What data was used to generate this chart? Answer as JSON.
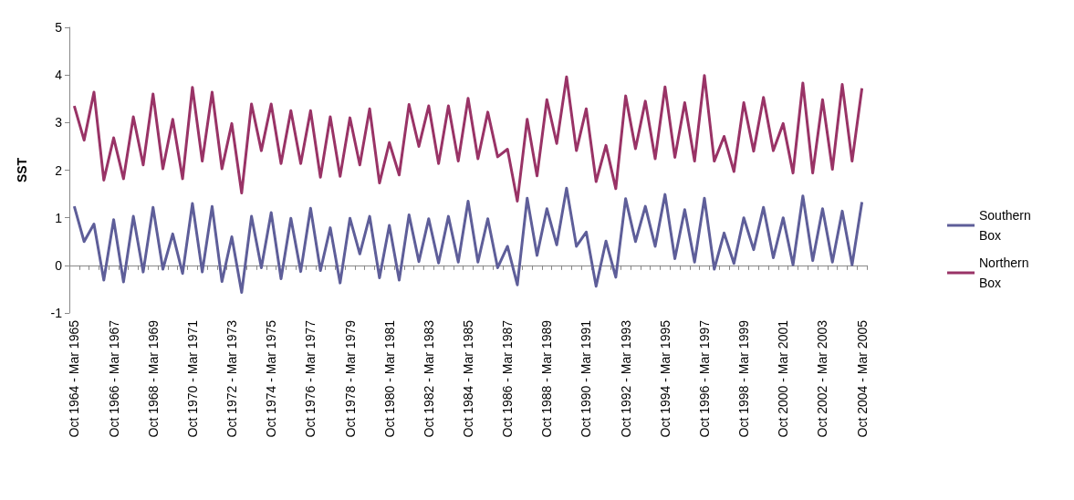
{
  "chart_data": {
    "type": "line",
    "ylabel": "SST",
    "categories": [
      "Oct 1964 - Mar 1965",
      null,
      null,
      null,
      "Oct 1966 - Mar 1967",
      null,
      null,
      null,
      "Oct 1968 - Mar 1969",
      null,
      null,
      null,
      "Oct 1970 - Mar 1971",
      null,
      null,
      null,
      "Oct 1972 - Mar 1973",
      null,
      null,
      null,
      "Oct 1974 - Mar 1975",
      null,
      null,
      null,
      "Oct 1976 - Mar 1977",
      null,
      null,
      null,
      "Oct 1978 - Mar 1979",
      null,
      null,
      null,
      "Oct 1980 - Mar 1981",
      null,
      null,
      null,
      "Oct 1982 - Mar 1983",
      null,
      null,
      null,
      "Oct 1984 - Mar 1985",
      null,
      null,
      null,
      "Oct 1986 - Mar 1987",
      null,
      null,
      null,
      "Oct 1988 - Mar 1989",
      null,
      null,
      null,
      "Oct 1990 - Mar 1991",
      null,
      null,
      null,
      "Oct 1992 - Mar 1993",
      null,
      null,
      null,
      "Oct 1994 - Mar 1995",
      null,
      null,
      null,
      "Oct 1996 - Mar 1997",
      null,
      null,
      null,
      "Oct 1998 - Mar 1999",
      null,
      null,
      null,
      "Oct 2000 - Mar 2001",
      null,
      null,
      null,
      "Oct 2002 - Mar 2003",
      null,
      null,
      null,
      "Oct 2004 - Mar 2005"
    ],
    "series": [
      {
        "name": "Southern Box",
        "color": "#5e5e99",
        "values": [
          1.24,
          0.5,
          0.87,
          -0.31,
          0.96,
          -0.35,
          1.03,
          -0.14,
          1.22,
          -0.08,
          0.66,
          -0.17,
          1.3,
          -0.14,
          1.24,
          -0.34,
          0.6,
          -0.57,
          1.03,
          -0.05,
          1.11,
          -0.28,
          0.99,
          -0.13,
          1.2,
          -0.11,
          0.79,
          -0.37,
          0.99,
          0.24,
          1.03,
          -0.26,
          0.84,
          -0.31,
          1.06,
          0.08,
          0.98,
          0.05,
          1.03,
          0.07,
          1.35,
          0.07,
          0.98,
          -0.05,
          0.4,
          -0.41,
          1.41,
          0.21,
          1.19,
          0.43,
          1.62,
          0.4,
          0.7,
          -0.44,
          0.51,
          -0.25,
          1.4,
          0.5,
          1.24,
          0.4,
          1.49,
          0.14,
          1.17,
          0.07,
          1.41,
          -0.08,
          0.68,
          0.04,
          1.0,
          0.33,
          1.22,
          0.16,
          1.0,
          0.01,
          1.46,
          0.1,
          1.19,
          0.07,
          1.14,
          0.01,
          1.33
        ]
      },
      {
        "name": "Northern Box",
        "color": "#993366",
        "values": [
          3.35,
          2.63,
          3.64,
          1.79,
          2.68,
          1.82,
          3.12,
          2.11,
          3.6,
          2.03,
          3.07,
          1.82,
          3.74,
          2.19,
          3.64,
          2.03,
          2.98,
          1.52,
          3.39,
          2.41,
          3.39,
          2.14,
          3.25,
          2.14,
          3.25,
          1.85,
          3.12,
          1.87,
          3.1,
          2.11,
          3.29,
          1.73,
          2.58,
          1.9,
          3.38,
          2.5,
          3.35,
          2.14,
          3.35,
          2.19,
          3.51,
          2.24,
          3.22,
          2.28,
          2.44,
          1.35,
          3.07,
          1.88,
          3.48,
          2.56,
          3.96,
          2.41,
          3.29,
          1.76,
          2.52,
          1.61,
          3.56,
          2.45,
          3.45,
          2.24,
          3.75,
          2.27,
          3.42,
          2.19,
          3.99,
          2.19,
          2.71,
          1.97,
          3.42,
          2.4,
          3.53,
          2.41,
          2.98,
          1.94,
          3.83,
          1.94,
          3.48,
          2.02,
          3.8,
          2.19,
          3.72
        ]
      }
    ],
    "ylim": [
      -1,
      5
    ],
    "yticks": [
      -1,
      0,
      1,
      2,
      3,
      4,
      5
    ],
    "legend": "right",
    "marker": "none",
    "line_style": "solid"
  }
}
